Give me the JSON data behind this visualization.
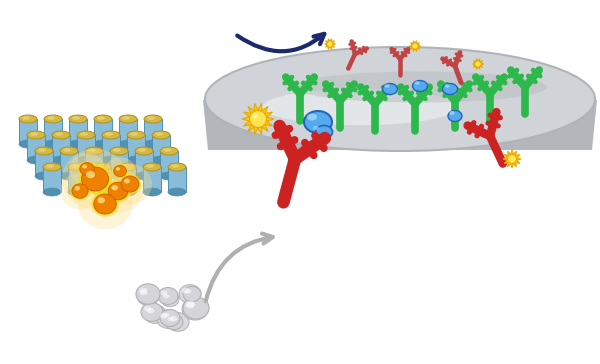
{
  "fig_width": 6.0,
  "fig_height": 3.64,
  "dpi": 100,
  "bg_color": "#ffffff",
  "green_ab": "#2db84b",
  "red_ab": "#cc2222",
  "red_ab_light": "#c04444",
  "blue_analyte": "#55aaee",
  "blue_analyte_dark": "#2266bb",
  "yellow_enzyme": "#ffcc00",
  "yellow_enzyme_dark": "#e8a800",
  "grey_substrate": "#c8c8cc",
  "orange_glow": "#ffaa00",
  "orange_dot": "#f08000",
  "cyl_blue": "#88bcd8",
  "cyl_blue_dark": "#5090b0",
  "cyl_top": "#d4b840",
  "cyl_top_dark": "#b09020",
  "surf_color": "#d0d4d8",
  "surf_edge": "#b0b4b8",
  "surf_hi": "#eaeef0",
  "arrow_grey": "#b0b0b0",
  "arrow_navy": "#1a2a6c"
}
